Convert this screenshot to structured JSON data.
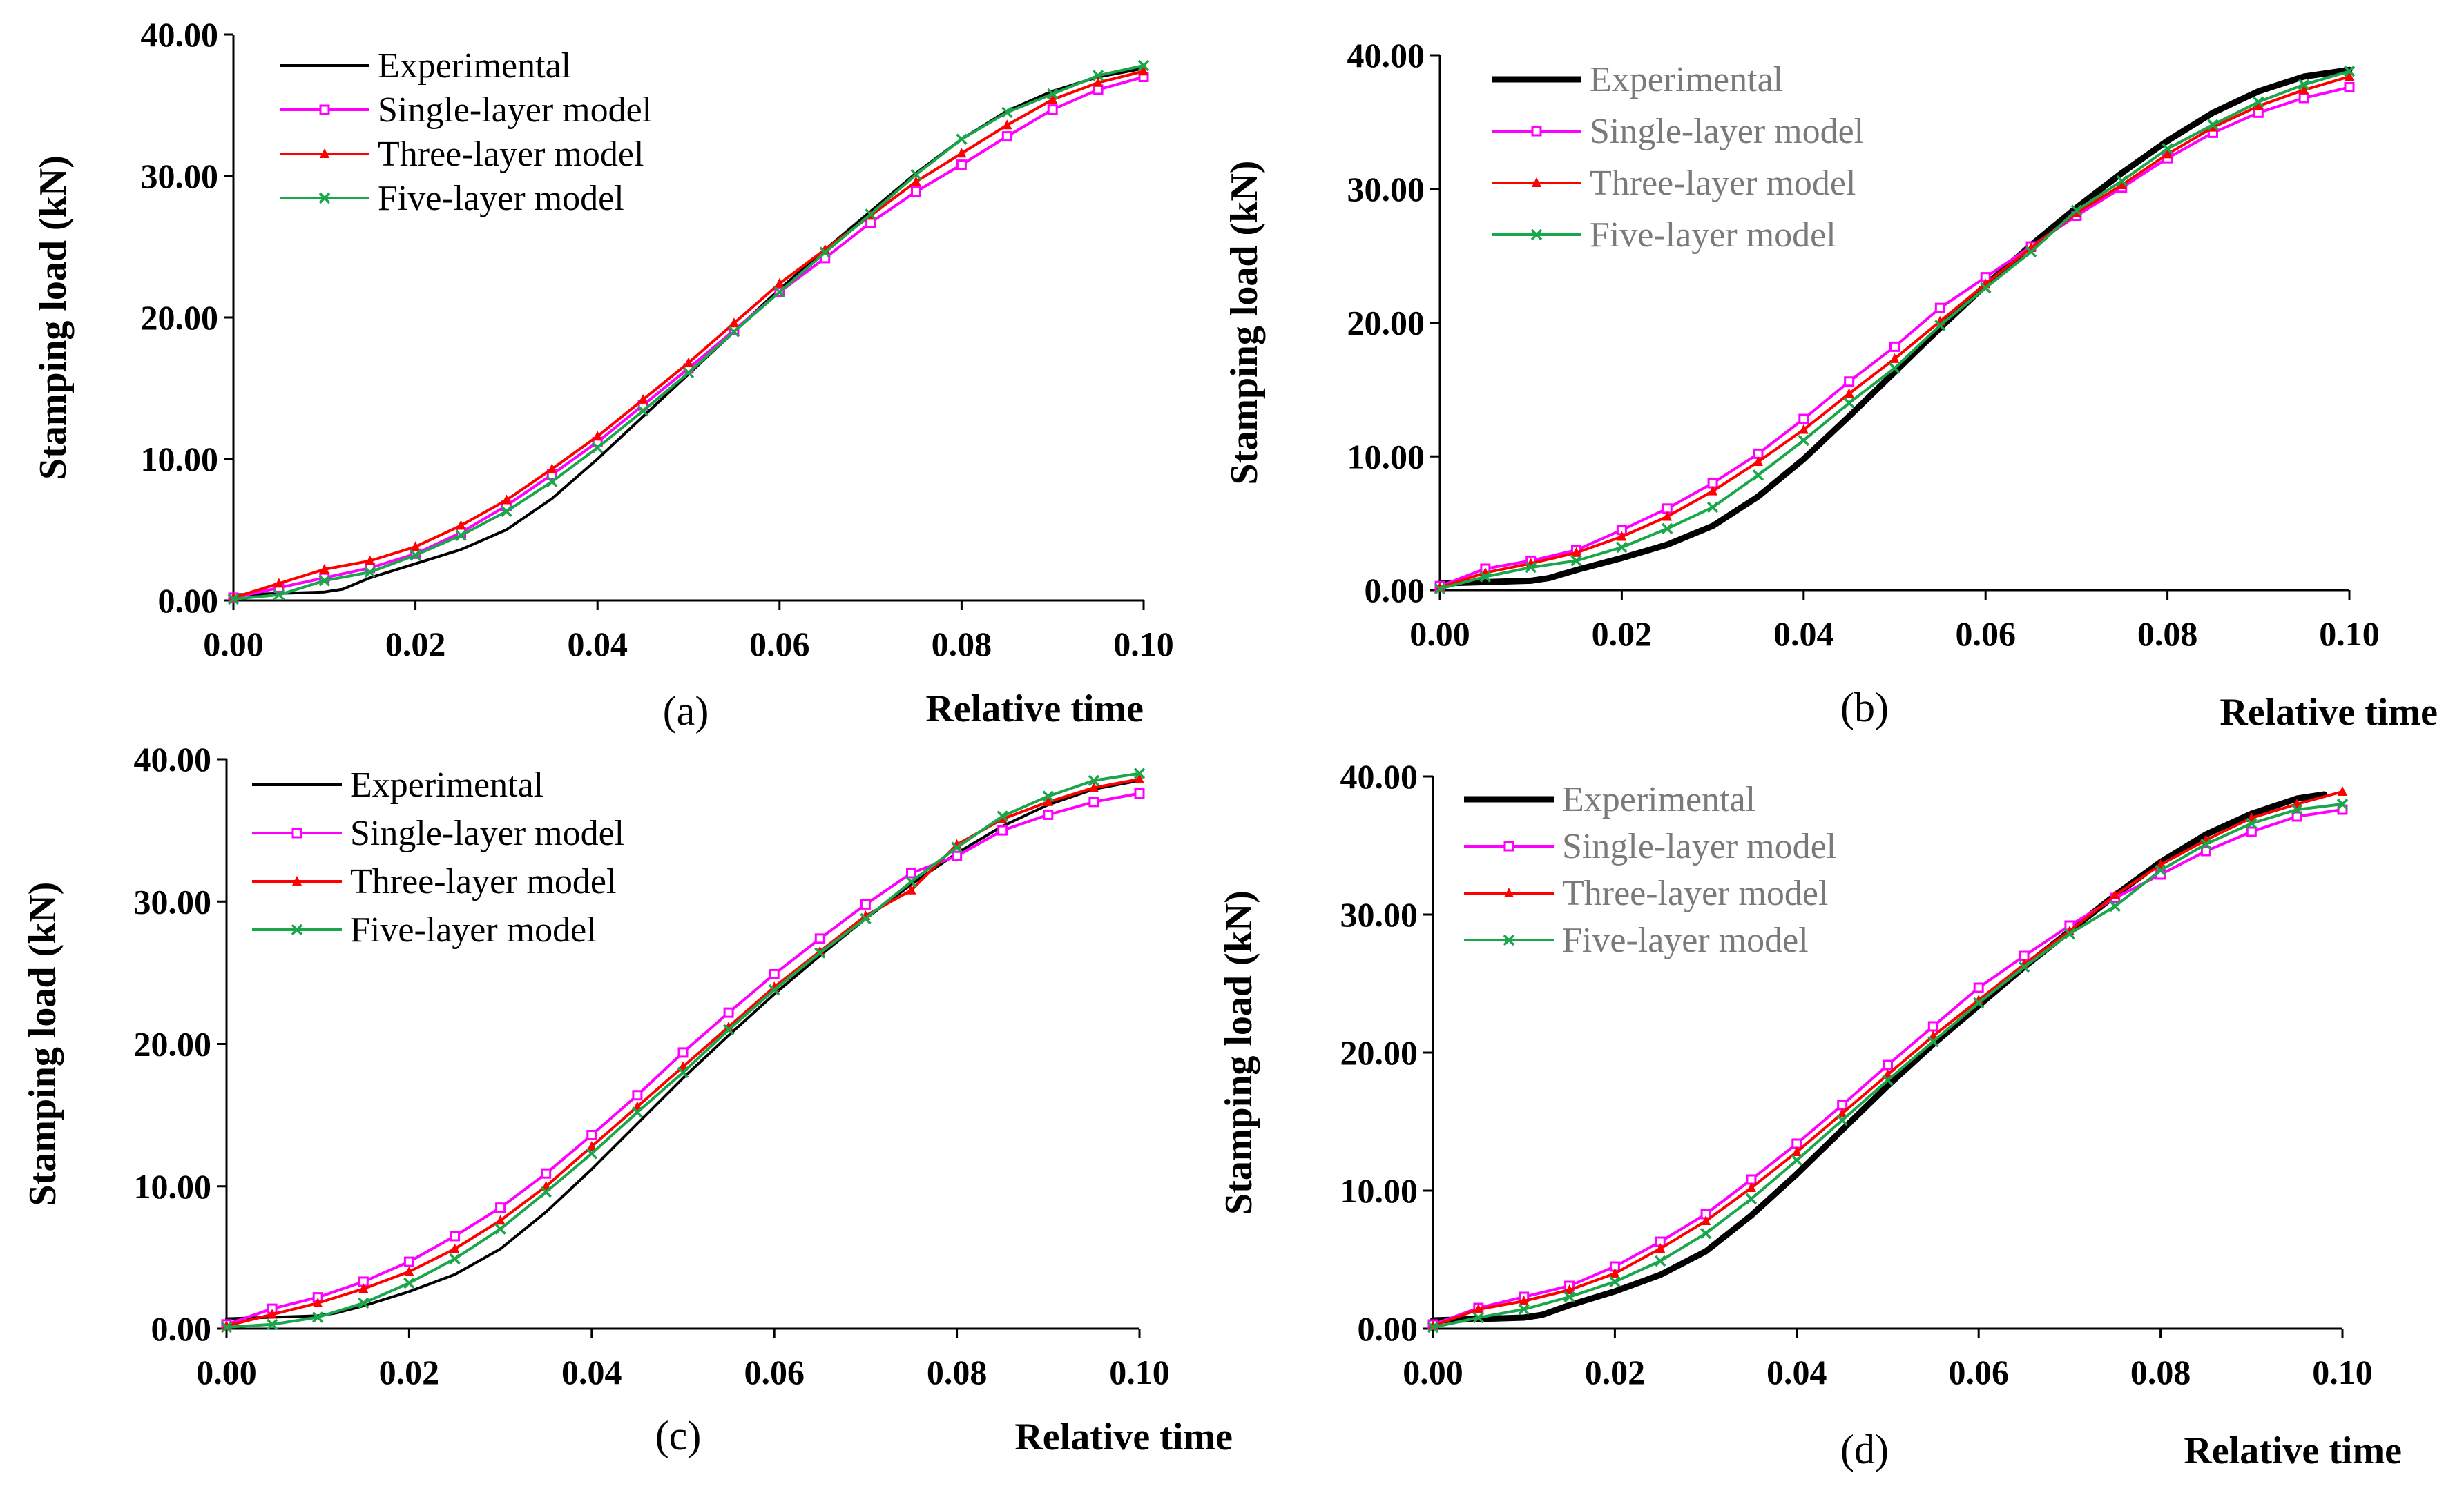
{
  "figure": {
    "description_colors": {
      "experimental": "#000000",
      "single": "#ff00ff",
      "three": "#ff0000",
      "five": "#1aa64a"
    }
  },
  "chart_data": [
    {
      "type": "line",
      "panel_label": "(a)",
      "xlabel": "Relative time",
      "ylabel": "Stamping load (kN)",
      "xlim": [
        0,
        0.1
      ],
      "ylim": [
        0,
        40
      ],
      "x_ticks": [
        "0.00",
        "0.02",
        "0.04",
        "0.06",
        "0.08",
        "0.10"
      ],
      "y_ticks": [
        "0.00",
        "10.00",
        "20.00",
        "30.00",
        "40.00"
      ],
      "legend_gray": false,
      "series": [
        {
          "name": "Experimental",
          "key": "experimental",
          "thick": false,
          "x": [
            0,
            0.005,
            0.01,
            0.012,
            0.015,
            0.02,
            0.025,
            0.03,
            0.035,
            0.04,
            0.045,
            0.05,
            0.055,
            0.06,
            0.065,
            0.07,
            0.075,
            0.08,
            0.085,
            0.09,
            0.095,
            0.1
          ],
          "y": [
            0.4,
            0.5,
            0.6,
            0.8,
            1.6,
            2.6,
            3.6,
            5.0,
            7.2,
            10.0,
            13.0,
            16.0,
            19.0,
            22.0,
            24.8,
            27.5,
            30.2,
            32.6,
            34.6,
            36.0,
            37.0,
            37.6
          ]
        },
        {
          "name": "Single-layer model",
          "key": "single",
          "x": [
            0,
            0.005,
            0.01,
            0.015,
            0.02,
            0.025,
            0.03,
            0.035,
            0.04,
            0.045,
            0.05,
            0.055,
            0.06,
            0.065,
            0.07,
            0.075,
            0.08,
            0.085,
            0.09,
            0.095,
            0.1
          ],
          "y": [
            0.2,
            0.9,
            1.6,
            2.3,
            3.3,
            4.8,
            6.7,
            8.9,
            11.2,
            13.8,
            16.4,
            19.1,
            21.8,
            24.2,
            26.7,
            28.9,
            30.8,
            32.8,
            34.7,
            36.1,
            37.0
          ]
        },
        {
          "name": "Three-layer model",
          "key": "three",
          "x": [
            0,
            0.005,
            0.01,
            0.015,
            0.02,
            0.025,
            0.03,
            0.035,
            0.04,
            0.045,
            0.05,
            0.055,
            0.06,
            0.065,
            0.07,
            0.075,
            0.08,
            0.085,
            0.09,
            0.095,
            0.1
          ],
          "y": [
            0.2,
            1.2,
            2.2,
            2.8,
            3.8,
            5.3,
            7.1,
            9.3,
            11.6,
            14.2,
            16.8,
            19.6,
            22.4,
            24.8,
            27.2,
            29.6,
            31.6,
            33.6,
            35.4,
            36.6,
            37.4
          ]
        },
        {
          "name": "Five-layer model",
          "key": "five",
          "x": [
            0,
            0.005,
            0.01,
            0.015,
            0.02,
            0.025,
            0.03,
            0.035,
            0.04,
            0.045,
            0.05,
            0.055,
            0.06,
            0.065,
            0.07,
            0.075,
            0.08,
            0.085,
            0.09,
            0.095,
            0.1
          ],
          "y": [
            0.1,
            0.4,
            1.4,
            2.0,
            3.2,
            4.6,
            6.3,
            8.4,
            10.8,
            13.4,
            16.1,
            19.0,
            21.8,
            24.6,
            27.3,
            30.1,
            32.6,
            34.5,
            35.8,
            37.1,
            37.8
          ]
        }
      ]
    },
    {
      "type": "line",
      "panel_label": "(b)",
      "xlabel": "Relative time",
      "ylabel": "Stamping load (kN)",
      "xlim": [
        0,
        0.1
      ],
      "ylim": [
        0,
        40
      ],
      "x_ticks": [
        "0.00",
        "0.02",
        "0.04",
        "0.06",
        "0.08",
        "0.10"
      ],
      "y_ticks": [
        "0.00",
        "10.00",
        "20.00",
        "30.00",
        "40.00"
      ],
      "legend_gray": true,
      "series": [
        {
          "name": "Experimental",
          "key": "experimental",
          "thick": true,
          "x": [
            0,
            0.005,
            0.01,
            0.012,
            0.015,
            0.02,
            0.025,
            0.03,
            0.035,
            0.04,
            0.045,
            0.05,
            0.055,
            0.06,
            0.065,
            0.07,
            0.075,
            0.08,
            0.085,
            0.09,
            0.095,
            0.1
          ],
          "y": [
            0.5,
            0.6,
            0.7,
            0.9,
            1.5,
            2.4,
            3.4,
            4.8,
            7.0,
            9.8,
            13.0,
            16.3,
            19.6,
            22.8,
            25.8,
            28.6,
            31.2,
            33.6,
            35.7,
            37.3,
            38.4,
            38.9
          ]
        },
        {
          "name": "Single-layer model",
          "key": "single",
          "x": [
            0,
            0.005,
            0.01,
            0.015,
            0.02,
            0.025,
            0.03,
            0.035,
            0.04,
            0.045,
            0.05,
            0.055,
            0.06,
            0.065,
            0.07,
            0.075,
            0.08,
            0.085,
            0.09,
            0.095,
            0.1
          ],
          "y": [
            0.3,
            1.6,
            2.2,
            3.0,
            4.5,
            6.1,
            8.0,
            10.2,
            12.8,
            15.6,
            18.2,
            21.1,
            23.4,
            25.7,
            28.0,
            30.1,
            32.3,
            34.2,
            35.7,
            36.8,
            37.6
          ]
        },
        {
          "name": "Three-layer model",
          "key": "three",
          "x": [
            0,
            0.005,
            0.01,
            0.015,
            0.02,
            0.025,
            0.03,
            0.035,
            0.04,
            0.045,
            0.05,
            0.055,
            0.06,
            0.065,
            0.07,
            0.075,
            0.08,
            0.085,
            0.09,
            0.095,
            0.1
          ],
          "y": [
            0.2,
            1.3,
            2.0,
            2.8,
            4.0,
            5.5,
            7.4,
            9.6,
            12.0,
            14.7,
            17.3,
            20.1,
            22.9,
            25.6,
            28.2,
            30.3,
            32.6,
            34.6,
            36.2,
            37.4,
            38.4
          ]
        },
        {
          "name": "Five-layer model",
          "key": "five",
          "x": [
            0,
            0.005,
            0.01,
            0.015,
            0.02,
            0.025,
            0.03,
            0.035,
            0.04,
            0.045,
            0.05,
            0.055,
            0.06,
            0.065,
            0.07,
            0.075,
            0.08,
            0.085,
            0.09,
            0.095,
            0.1
          ],
          "y": [
            0.1,
            1.0,
            1.7,
            2.2,
            3.2,
            4.6,
            6.2,
            8.6,
            11.2,
            14.0,
            16.6,
            19.8,
            22.6,
            25.3,
            28.4,
            30.6,
            33.0,
            34.8,
            36.5,
            37.8,
            38.8
          ]
        }
      ]
    },
    {
      "type": "line",
      "panel_label": "(c)",
      "xlabel": "Relative time",
      "ylabel": "Stamping load (kN)",
      "xlim": [
        0,
        0.1
      ],
      "ylim": [
        0,
        40
      ],
      "x_ticks": [
        "0.00",
        "0.02",
        "0.04",
        "0.06",
        "0.08",
        "0.10"
      ],
      "y_ticks": [
        "0.00",
        "10.00",
        "20.00",
        "30.00",
        "40.00"
      ],
      "legend_gray": false,
      "series": [
        {
          "name": "Experimental",
          "key": "experimental",
          "thick": false,
          "x": [
            0,
            0.005,
            0.01,
            0.012,
            0.015,
            0.02,
            0.025,
            0.03,
            0.035,
            0.04,
            0.045,
            0.05,
            0.055,
            0.06,
            0.065,
            0.07,
            0.075,
            0.08,
            0.085,
            0.09,
            0.095,
            0.1
          ],
          "y": [
            0.7,
            0.8,
            0.9,
            1.1,
            1.6,
            2.6,
            3.8,
            5.6,
            8.2,
            11.2,
            14.4,
            17.6,
            20.6,
            23.5,
            26.2,
            28.8,
            31.2,
            33.4,
            35.3,
            36.8,
            37.9,
            38.5
          ]
        },
        {
          "name": "Single-layer model",
          "key": "single",
          "x": [
            0,
            0.005,
            0.01,
            0.015,
            0.02,
            0.025,
            0.03,
            0.035,
            0.04,
            0.045,
            0.05,
            0.055,
            0.06,
            0.065,
            0.07,
            0.075,
            0.08,
            0.085,
            0.09,
            0.095,
            0.1
          ],
          "y": [
            0.3,
            1.4,
            2.2,
            3.3,
            4.7,
            6.5,
            8.5,
            10.9,
            13.6,
            16.4,
            19.4,
            22.2,
            24.9,
            27.4,
            29.8,
            32.0,
            33.2,
            35.0,
            36.1,
            37.0,
            37.6
          ]
        },
        {
          "name": "Three-layer model",
          "key": "three",
          "x": [
            0,
            0.005,
            0.01,
            0.015,
            0.02,
            0.025,
            0.03,
            0.035,
            0.04,
            0.045,
            0.05,
            0.055,
            0.06,
            0.065,
            0.07,
            0.075,
            0.08,
            0.085,
            0.09,
            0.095,
            0.1
          ],
          "y": [
            0.2,
            1.0,
            1.8,
            2.8,
            4.0,
            5.6,
            7.6,
            10.0,
            12.8,
            15.6,
            18.4,
            21.2,
            24.0,
            26.5,
            29.0,
            30.8,
            34.0,
            35.8,
            37.0,
            38.0,
            38.6
          ]
        },
        {
          "name": "Five-layer model",
          "key": "five",
          "x": [
            0,
            0.005,
            0.01,
            0.015,
            0.02,
            0.025,
            0.03,
            0.035,
            0.04,
            0.045,
            0.05,
            0.055,
            0.06,
            0.065,
            0.07,
            0.075,
            0.08,
            0.085,
            0.09,
            0.095,
            0.1
          ],
          "y": [
            0.1,
            0.3,
            0.8,
            1.8,
            3.2,
            4.9,
            7.0,
            9.6,
            12.3,
            15.2,
            18.0,
            21.0,
            23.8,
            26.4,
            28.8,
            31.4,
            33.8,
            36.0,
            37.4,
            38.5,
            39.0
          ]
        }
      ]
    },
    {
      "type": "line",
      "panel_label": "(d)",
      "xlabel": "Relative time",
      "ylabel": "Stamping load (kN)",
      "xlim": [
        0,
        0.1
      ],
      "ylim": [
        0,
        40
      ],
      "x_ticks": [
        "0.00",
        "0.02",
        "0.04",
        "0.06",
        "0.08",
        "0.10"
      ],
      "y_ticks": [
        "0.00",
        "10.00",
        "20.00",
        "30.00",
        "40.00"
      ],
      "legend_gray": true,
      "series": [
        {
          "name": "Experimental",
          "key": "experimental",
          "thick": true,
          "x": [
            0,
            0.005,
            0.01,
            0.012,
            0.015,
            0.02,
            0.025,
            0.03,
            0.035,
            0.04,
            0.045,
            0.05,
            0.055,
            0.06,
            0.065,
            0.07,
            0.075,
            0.08,
            0.085,
            0.09,
            0.095,
            0.098
          ],
          "y": [
            0.6,
            0.7,
            0.8,
            1.0,
            1.7,
            2.7,
            3.9,
            5.6,
            8.2,
            11.2,
            14.4,
            17.6,
            20.6,
            23.4,
            26.2,
            28.8,
            31.4,
            33.8,
            35.8,
            37.3,
            38.4,
            38.7
          ]
        },
        {
          "name": "Single-layer model",
          "key": "single",
          "x": [
            0,
            0.005,
            0.01,
            0.015,
            0.02,
            0.025,
            0.03,
            0.035,
            0.04,
            0.045,
            0.05,
            0.055,
            0.06,
            0.065,
            0.07,
            0.075,
            0.08,
            0.085,
            0.09,
            0.095,
            0.1
          ],
          "y": [
            0.3,
            1.5,
            2.3,
            3.1,
            4.5,
            6.3,
            8.3,
            10.8,
            13.4,
            16.2,
            19.1,
            21.9,
            24.7,
            27.0,
            29.2,
            31.2,
            32.9,
            34.6,
            36.0,
            37.1,
            37.6
          ]
        },
        {
          "name": "Three-layer model",
          "key": "three",
          "x": [
            0,
            0.005,
            0.01,
            0.015,
            0.02,
            0.025,
            0.03,
            0.035,
            0.04,
            0.045,
            0.05,
            0.055,
            0.06,
            0.065,
            0.07,
            0.075,
            0.08,
            0.085,
            0.09,
            0.095,
            0.1
          ],
          "y": [
            0.2,
            1.4,
            2.0,
            2.8,
            4.0,
            5.8,
            7.8,
            10.2,
            12.8,
            15.6,
            18.4,
            21.2,
            23.8,
            26.4,
            28.8,
            31.4,
            33.6,
            35.4,
            37.0,
            38.0,
            38.9
          ]
        },
        {
          "name": "Five-layer model",
          "key": "five",
          "x": [
            0,
            0.005,
            0.01,
            0.015,
            0.02,
            0.025,
            0.03,
            0.035,
            0.04,
            0.045,
            0.05,
            0.055,
            0.06,
            0.065,
            0.07,
            0.075,
            0.08,
            0.085,
            0.09,
            0.095,
            0.1
          ],
          "y": [
            0.1,
            0.8,
            1.4,
            2.3,
            3.4,
            4.9,
            6.9,
            9.4,
            12.2,
            15.1,
            18.0,
            20.8,
            23.6,
            26.2,
            28.6,
            30.6,
            33.2,
            35.1,
            36.6,
            37.6,
            38.0
          ]
        }
      ]
    }
  ]
}
